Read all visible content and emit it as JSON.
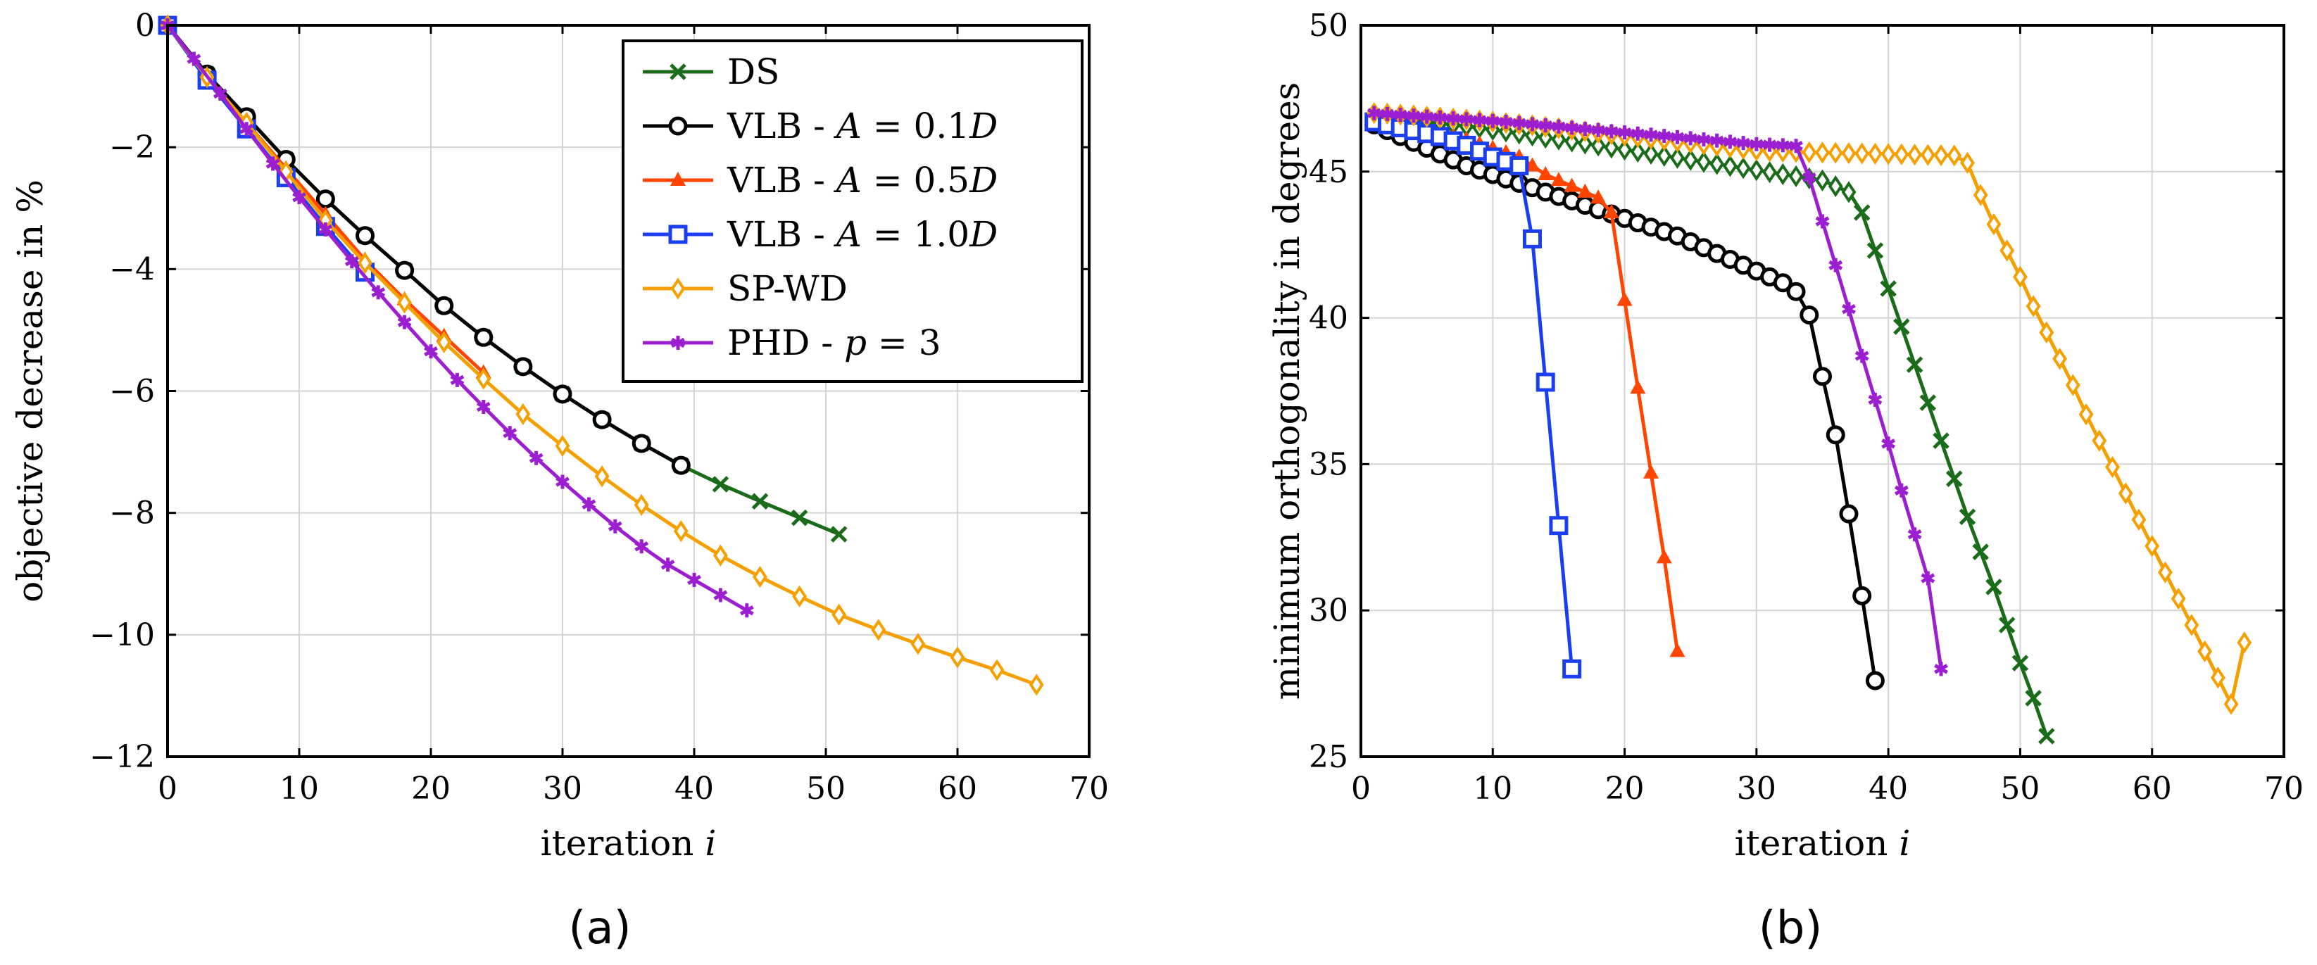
{
  "figure": {
    "sublabel_a": "(a)",
    "sublabel_b": "(b)"
  },
  "colors": {
    "DS": "#1a6b1a",
    "VLB_01": "#000000",
    "VLB_05": "#ff4500",
    "VLB_10": "#1a3ef0",
    "SPWD": "#f5a000",
    "PHD": "#9b1fd1",
    "grid": "#d4d4d4"
  },
  "chart_data": [
    {
      "type": "line",
      "xlabel": "iteration i",
      "ylabel": "objective decrease in %",
      "xlim": [
        0,
        70
      ],
      "ylim": [
        -12,
        0
      ],
      "xticks": [
        0,
        10,
        20,
        30,
        40,
        50,
        60,
        70
      ],
      "yticks": [
        0,
        -2,
        -4,
        -6,
        -8,
        -10,
        -12
      ],
      "xtick_labels": [
        "0",
        "10",
        "20",
        "30",
        "40",
        "50",
        "60",
        "70"
      ],
      "ytick_labels": [
        "0",
        "−2",
        "−4",
        "−6",
        "−8",
        "−10",
        "−12"
      ],
      "grid": true,
      "legend_position": "top-right",
      "series": [
        {
          "name": "DS",
          "key": "DS",
          "marker": "x",
          "step": 3,
          "x": [
            0,
            3,
            6,
            9,
            12,
            15,
            18,
            21,
            24,
            27,
            30,
            33,
            36,
            39,
            42,
            45,
            48,
            51
          ],
          "y": [
            0,
            -0.8,
            -1.5,
            -2.2,
            -2.85,
            -3.45,
            -4.02,
            -4.6,
            -5.12,
            -5.6,
            -6.05,
            -6.47,
            -6.86,
            -7.22,
            -7.53,
            -7.81,
            -8.08,
            -8.35
          ]
        },
        {
          "name": "VLB - A = 0.1D",
          "key": "VLB_01",
          "marker": "circle",
          "step": 3,
          "x": [
            0,
            3,
            6,
            9,
            12,
            15,
            18,
            21,
            24,
            27,
            30,
            33,
            36,
            39
          ],
          "y": [
            0,
            -0.8,
            -1.5,
            -2.2,
            -2.85,
            -3.45,
            -4.02,
            -4.6,
            -5.12,
            -5.6,
            -6.05,
            -6.47,
            -6.86,
            -7.22
          ]
        },
        {
          "name": "VLB - A = 0.5D",
          "key": "VLB_05",
          "marker": "triangle",
          "step": 3,
          "x": [
            0,
            3,
            6,
            9,
            12,
            15,
            18,
            21,
            24
          ],
          "y": [
            0,
            -0.85,
            -1.6,
            -2.35,
            -3.1,
            -3.85,
            -4.5,
            -5.1,
            -5.7
          ]
        },
        {
          "name": "VLB - A = 1.0D",
          "key": "VLB_10",
          "marker": "square",
          "step": 3,
          "x": [
            0,
            3,
            6,
            9,
            12,
            15
          ],
          "y": [
            0,
            -0.9,
            -1.7,
            -2.5,
            -3.3,
            -4.05
          ]
        },
        {
          "name": "SP-WD",
          "key": "SPWD",
          "marker": "diamond",
          "step": 3,
          "x": [
            0,
            3,
            6,
            9,
            12,
            15,
            18,
            21,
            24,
            27,
            30,
            33,
            36,
            39,
            42,
            45,
            48,
            51,
            54,
            57,
            60,
            63,
            66
          ],
          "y": [
            0,
            -0.85,
            -1.6,
            -2.4,
            -3.2,
            -3.9,
            -4.55,
            -5.2,
            -5.8,
            -6.38,
            -6.9,
            -7.4,
            -7.87,
            -8.3,
            -8.7,
            -9.05,
            -9.37,
            -9.67,
            -9.92,
            -10.15,
            -10.37,
            -10.58,
            -10.82
          ]
        },
        {
          "name": "PHD - p = 3",
          "key": "PHD",
          "marker": "star",
          "step": 2,
          "x": [
            0,
            2,
            4,
            6,
            8,
            10,
            12,
            14,
            16,
            18,
            20,
            22,
            24,
            26,
            28,
            30,
            32,
            34,
            36,
            38,
            40,
            42,
            44
          ],
          "y": [
            0,
            -0.55,
            -1.12,
            -1.7,
            -2.27,
            -2.82,
            -3.35,
            -3.87,
            -4.38,
            -4.87,
            -5.35,
            -5.82,
            -6.26,
            -6.69,
            -7.1,
            -7.49,
            -7.86,
            -8.22,
            -8.55,
            -8.85,
            -9.1,
            -9.35,
            -9.6
          ]
        }
      ]
    },
    {
      "type": "line",
      "xlabel": "iteration i",
      "ylabel": "minimum orthogonality in degrees",
      "xlim": [
        0,
        70
      ],
      "ylim": [
        25,
        50
      ],
      "xticks": [
        0,
        10,
        20,
        30,
        40,
        50,
        60,
        70
      ],
      "yticks": [
        25,
        30,
        35,
        40,
        45,
        50
      ],
      "xtick_labels": [
        "0",
        "10",
        "20",
        "30",
        "40",
        "50",
        "60",
        "70"
      ],
      "ytick_labels": [
        "25",
        "30",
        "35",
        "40",
        "45",
        "50"
      ],
      "grid": true,
      "series": [
        {
          "name": "DS",
          "key": "DS",
          "marker": "diamond",
          "step": 1,
          "x": [
            1,
            2,
            3,
            4,
            5,
            6,
            7,
            8,
            9,
            10,
            11,
            12,
            13,
            14,
            15,
            16,
            17,
            18,
            19,
            20,
            21,
            22,
            23,
            24,
            25,
            26,
            27,
            28,
            29,
            30,
            31,
            32,
            33,
            34,
            35,
            36,
            37
          ],
          "y": [
            46.9,
            46.85,
            46.8,
            46.75,
            46.7,
            46.65,
            46.6,
            46.55,
            46.5,
            46.43,
            46.37,
            46.3,
            46.23,
            46.16,
            46.1,
            46.03,
            45.96,
            45.89,
            45.82,
            45.75,
            45.68,
            45.61,
            45.54,
            45.47,
            45.4,
            45.33,
            45.26,
            45.19,
            45.12,
            45.05,
            44.98,
            44.91,
            44.84,
            44.77,
            44.7,
            44.5,
            44.3
          ],
          "steep_marker": "x",
          "steep_x": [
            37,
            38,
            39,
            40,
            41,
            42,
            43,
            44,
            45,
            46,
            47,
            48,
            49,
            50,
            51,
            52
          ],
          "steep_y": [
            44.3,
            43.6,
            42.3,
            41.0,
            39.7,
            38.4,
            37.1,
            35.8,
            34.5,
            33.2,
            32.0,
            30.8,
            29.5,
            28.2,
            27.0,
            25.7
          ]
        },
        {
          "name": "VLB - A = 0.1D",
          "key": "VLB_01",
          "marker": "circle",
          "step": 1,
          "x": [
            1,
            2,
            3,
            4,
            5,
            6,
            7,
            8,
            9,
            10,
            11,
            12,
            13,
            14,
            15,
            16,
            17,
            18,
            19,
            20,
            21,
            22,
            23,
            24,
            25,
            26,
            27,
            28,
            29,
            30,
            31,
            32,
            33,
            34,
            35,
            36,
            37,
            38,
            39
          ],
          "y": [
            46.6,
            46.4,
            46.2,
            46.0,
            45.8,
            45.6,
            45.4,
            45.2,
            45.05,
            44.9,
            44.75,
            44.6,
            44.45,
            44.3,
            44.15,
            44.0,
            43.85,
            43.7,
            43.55,
            43.4,
            43.25,
            43.1,
            42.95,
            42.8,
            42.6,
            42.4,
            42.2,
            42.0,
            41.8,
            41.6,
            41.4,
            41.2,
            40.9,
            40.1,
            38.0,
            36.0,
            33.3,
            30.5,
            27.6
          ]
        },
        {
          "name": "VLB - A = 0.5D",
          "key": "VLB_05",
          "marker": "triangle",
          "step": 1,
          "x": [
            1,
            2,
            3,
            4,
            5,
            6,
            7,
            8,
            9,
            10,
            11,
            12,
            13,
            14,
            15,
            16,
            17,
            18,
            19,
            20,
            21,
            22,
            23,
            24
          ],
          "y": [
            46.8,
            46.7,
            46.6,
            46.5,
            46.4,
            46.3,
            46.2,
            46.1,
            45.95,
            45.8,
            45.65,
            45.5,
            45.2,
            44.9,
            44.7,
            44.5,
            44.3,
            44.1,
            43.6,
            40.6,
            37.6,
            34.7,
            31.8,
            28.6
          ]
        },
        {
          "name": "VLB - A = 1.0D",
          "key": "VLB_10",
          "marker": "square",
          "step": 1,
          "x": [
            1,
            2,
            3,
            4,
            5,
            6,
            7,
            8,
            9,
            10,
            11,
            12,
            13,
            14,
            15,
            16
          ],
          "y": [
            46.7,
            46.6,
            46.5,
            46.4,
            46.3,
            46.2,
            46.05,
            45.9,
            45.7,
            45.5,
            45.35,
            45.2,
            42.7,
            37.8,
            32.9,
            28.0
          ]
        },
        {
          "name": "SP-WD",
          "key": "SPWD",
          "marker": "diamond",
          "step": 1,
          "x": [
            1,
            2,
            3,
            4,
            5,
            6,
            7,
            8,
            9,
            10,
            11,
            12,
            13,
            14,
            15,
            16,
            17,
            18,
            19,
            20,
            21,
            22,
            23,
            24,
            25,
            26,
            27,
            28,
            29,
            30,
            31,
            32,
            33,
            34,
            35,
            36,
            37,
            38,
            39,
            40,
            41,
            42,
            43,
            44,
            45,
            46,
            47,
            48,
            49,
            50,
            51,
            52,
            53,
            54,
            55,
            56,
            57,
            58,
            59,
            60,
            61,
            62,
            63,
            64,
            65,
            66,
            67
          ],
          "y": [
            47.0,
            46.98,
            46.95,
            46.92,
            46.88,
            46.85,
            46.81,
            46.78,
            46.74,
            46.7,
            46.66,
            46.62,
            46.58,
            46.53,
            46.48,
            46.43,
            46.38,
            46.33,
            46.28,
            46.23,
            46.18,
            46.13,
            46.08,
            46.03,
            45.98,
            45.93,
            45.88,
            45.83,
            45.78,
            45.73,
            45.7,
            45.68,
            45.67,
            45.66,
            45.65,
            45.64,
            45.63,
            45.62,
            45.61,
            45.6,
            45.59,
            45.58,
            45.57,
            45.56,
            45.55,
            45.3,
            44.2,
            43.2,
            42.3,
            41.4,
            40.4,
            39.5,
            38.6,
            37.7,
            36.7,
            35.8,
            34.9,
            34.0,
            33.1,
            32.2,
            31.3,
            30.4,
            29.5,
            28.6,
            27.7,
            26.8,
            28.9
          ]
        },
        {
          "name": "PHD - p = 3",
          "key": "PHD",
          "marker": "star",
          "step": 1,
          "x": [
            1,
            2,
            3,
            4,
            5,
            6,
            7,
            8,
            9,
            10,
            11,
            12,
            13,
            14,
            15,
            16,
            17,
            18,
            19,
            20,
            21,
            22,
            23,
            24,
            25,
            26,
            27,
            28,
            29,
            30,
            31,
            32,
            33,
            34,
            35,
            36,
            37,
            38,
            39,
            40,
            41,
            42,
            43,
            44
          ],
          "y": [
            47.0,
            46.97,
            46.94,
            46.91,
            46.88,
            46.85,
            46.82,
            46.79,
            46.76,
            46.73,
            46.7,
            46.66,
            46.62,
            46.58,
            46.54,
            46.5,
            46.46,
            46.42,
            46.38,
            46.34,
            46.3,
            46.26,
            46.22,
            46.18,
            46.14,
            46.1,
            46.06,
            46.02,
            45.98,
            45.94,
            45.92,
            45.9,
            45.88,
            44.8,
            43.3,
            41.8,
            40.3,
            38.7,
            37.2,
            35.7,
            34.1,
            32.6,
            31.1,
            28.0
          ]
        }
      ]
    }
  ],
  "legend": {
    "entries": [
      {
        "key": "DS",
        "marker": "x",
        "parts": [
          {
            "t": "DS",
            "i": false
          }
        ]
      },
      {
        "key": "VLB_01",
        "marker": "circle",
        "parts": [
          {
            "t": "VLB - ",
            "i": false
          },
          {
            "t": "A",
            "i": true
          },
          {
            "t": " = 0.1",
            "i": false
          },
          {
            "t": "D",
            "i": true
          }
        ]
      },
      {
        "key": "VLB_05",
        "marker": "triangle",
        "parts": [
          {
            "t": "VLB - ",
            "i": false
          },
          {
            "t": "A",
            "i": true
          },
          {
            "t": " = 0.5",
            "i": false
          },
          {
            "t": "D",
            "i": true
          }
        ]
      },
      {
        "key": "VLB_10",
        "marker": "square",
        "parts": [
          {
            "t": "VLB - ",
            "i": false
          },
          {
            "t": "A",
            "i": true
          },
          {
            "t": " = 1.0",
            "i": false
          },
          {
            "t": "D",
            "i": true
          }
        ]
      },
      {
        "key": "SPWD",
        "marker": "diamond",
        "parts": [
          {
            "t": "SP-WD",
            "i": false
          }
        ]
      },
      {
        "key": "PHD",
        "marker": "star",
        "parts": [
          {
            "t": "PHD - ",
            "i": false
          },
          {
            "t": "p",
            "i": true
          },
          {
            "t": " = 3",
            "i": false
          }
        ]
      }
    ]
  }
}
